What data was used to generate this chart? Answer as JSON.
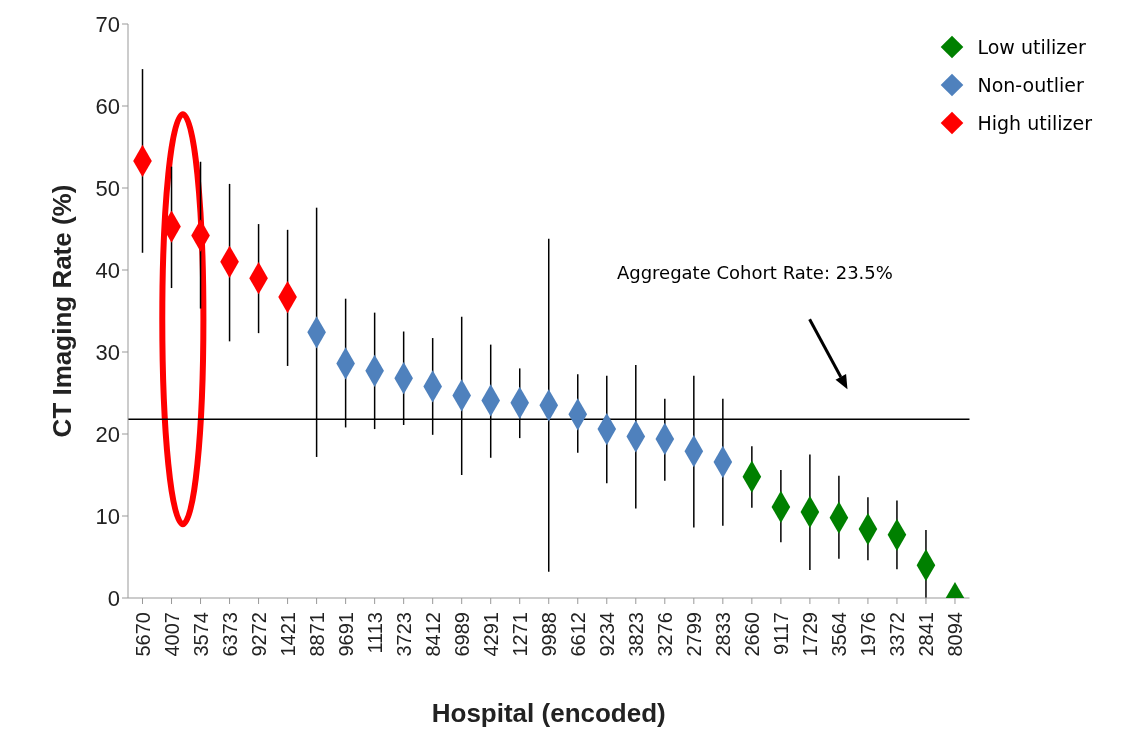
{
  "chart_data": {
    "type": "scatter",
    "xlabel": "Hospital (encoded)",
    "ylabel": "CT Imaging Rate (%)",
    "categories": [
      "5670",
      "4007",
      "3574",
      "6373",
      "9272",
      "1421",
      "8871",
      "9691",
      "1113",
      "3723",
      "8412",
      "6989",
      "4291",
      "1271",
      "9988",
      "6612",
      "9234",
      "3823",
      "3276",
      "2799",
      "2833",
      "2660",
      "9117",
      "1729",
      "3564",
      "1976",
      "3372",
      "2841",
      "8094"
    ],
    "series": [
      {
        "name": "Low utilizer",
        "color": "#008000",
        "values": [
          null,
          null,
          null,
          null,
          null,
          null,
          null,
          null,
          null,
          null,
          null,
          null,
          null,
          null,
          null,
          null,
          null,
          null,
          null,
          null,
          null,
          14.8,
          11.1,
          10.5,
          9.8,
          8.4,
          7.7,
          4.0,
          0
        ],
        "errors": [
          null,
          null,
          null,
          null,
          null,
          null,
          null,
          null,
          null,
          null,
          null,
          null,
          null,
          null,
          null,
          null,
          null,
          null,
          null,
          null,
          null,
          [
            11.0,
            18.5
          ],
          [
            6.8,
            15.6
          ],
          [
            3.4,
            17.5
          ],
          [
            4.8,
            14.9
          ],
          [
            4.6,
            12.3
          ],
          [
            3.5,
            11.9
          ],
          [
            0,
            8.3
          ],
          null
        ]
      },
      {
        "name": "Non-outlier",
        "color": "#4f81bd",
        "values": [
          null,
          null,
          null,
          null,
          null,
          null,
          32.4,
          28.6,
          27.7,
          26.8,
          25.8,
          24.7,
          24.1,
          23.8,
          23.5,
          22.4,
          20.6,
          19.7,
          19.4,
          17.9,
          16.6,
          null,
          null,
          null,
          null,
          null,
          null,
          null,
          null
        ],
        "errors": [
          null,
          null,
          null,
          null,
          null,
          null,
          [
            17.2,
            47.6
          ],
          [
            20.8,
            36.5
          ],
          [
            20.6,
            34.8
          ],
          [
            21.1,
            32.5
          ],
          [
            19.9,
            31.7
          ],
          [
            15.0,
            34.3
          ],
          [
            17.1,
            30.9
          ],
          [
            19.5,
            28.0
          ],
          [
            3.2,
            43.8
          ],
          [
            17.7,
            27.3
          ],
          [
            14.0,
            27.1
          ],
          [
            10.9,
            28.4
          ],
          [
            14.3,
            24.3
          ],
          [
            8.6,
            27.1
          ],
          [
            8.8,
            24.3
          ],
          null,
          null,
          null,
          null,
          null,
          null,
          null,
          null
        ]
      },
      {
        "name": "High utilizer",
        "color": "#ff0000",
        "values": [
          53.3,
          45.3,
          44.2,
          41.0,
          39.0,
          36.7,
          null,
          null,
          null,
          null,
          null,
          null,
          null,
          null,
          null,
          null,
          null,
          null,
          null,
          null,
          null,
          null,
          null,
          null,
          null,
          null,
          null,
          null,
          null
        ],
        "errors": [
          [
            42.1,
            64.5
          ],
          [
            37.8,
            52.6
          ],
          [
            35.3,
            53.2
          ],
          [
            31.3,
            50.5
          ],
          [
            32.3,
            45.6
          ],
          [
            28.3,
            44.9
          ],
          null,
          null,
          null,
          null,
          null,
          null,
          null,
          null,
          null,
          null,
          null,
          null,
          null,
          null,
          null,
          null,
          null,
          null,
          null,
          null,
          null,
          null,
          null
        ]
      }
    ],
    "ylim": [
      0,
      70
    ],
    "yticks": [
      0,
      10,
      20,
      30,
      40,
      50,
      60,
      70
    ],
    "ref_lines": [
      {
        "axis": "y",
        "value": 21.8,
        "color": "#000000"
      }
    ],
    "annotations": [
      "Aggregate Cohort Rate: 23.5%"
    ],
    "marker": "diamond",
    "grid": false,
    "legend": "top right"
  }
}
